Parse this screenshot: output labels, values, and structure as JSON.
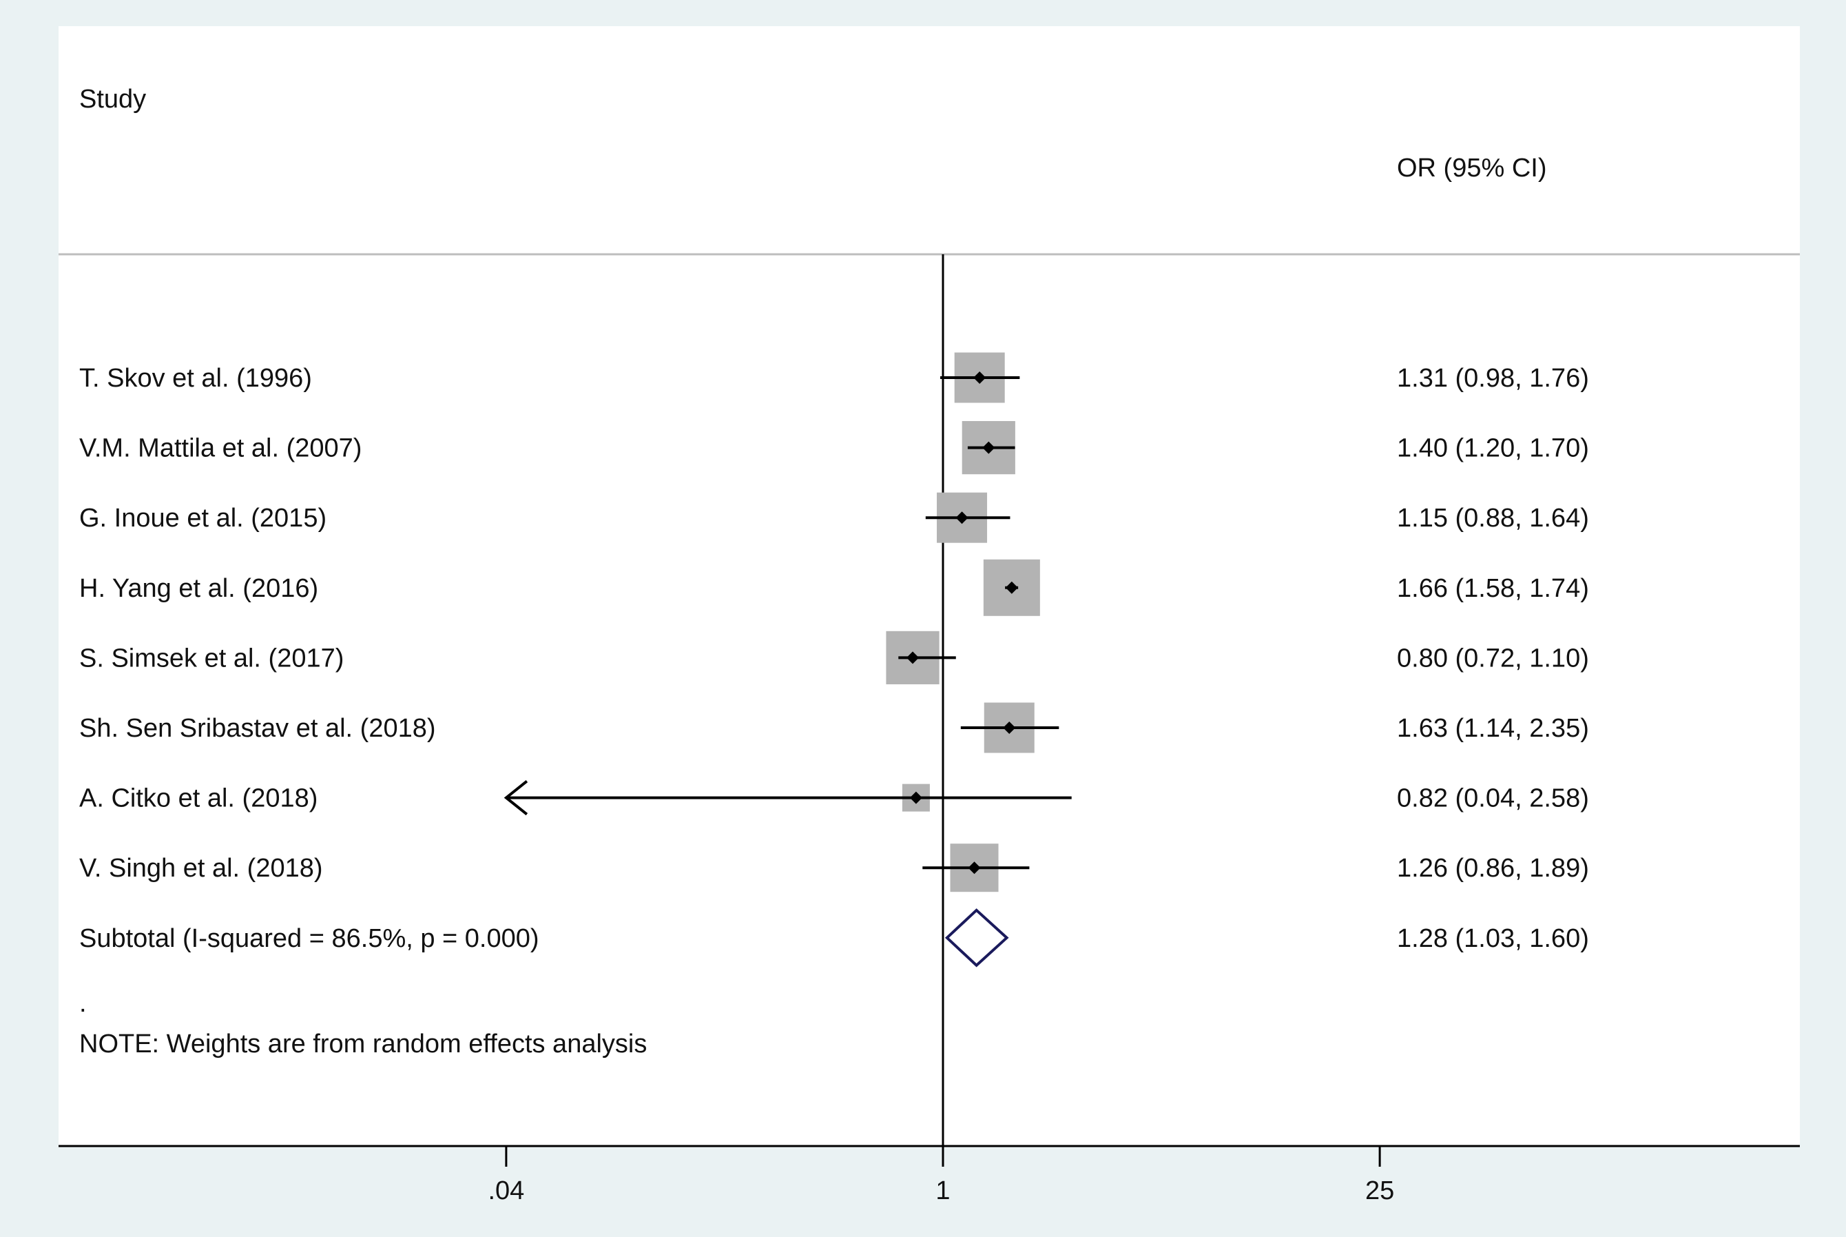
{
  "chart_data": {
    "type": "forest",
    "header_study": "Study",
    "header_ci": "OR (95% CI)",
    "x_scale": "log",
    "x_ticks": [
      {
        "value": 0.04,
        "label": ".04"
      },
      {
        "value": 1,
        "label": "1"
      },
      {
        "value": 25,
        "label": "25"
      }
    ],
    "null_line": 1,
    "studies": [
      {
        "name": "T. Skov et al. (1996)",
        "or": 1.31,
        "lower": 0.98,
        "upper": 1.76,
        "weight_rank": 0.85,
        "ci_text": "1.31 (0.98, 1.76)"
      },
      {
        "name": "V.M. Mattila et al. (2007)",
        "or": 1.4,
        "lower": 1.2,
        "upper": 1.7,
        "weight_rank": 0.92,
        "ci_text": "1.40 (1.20, 1.70)"
      },
      {
        "name": "G. Inoue  et al. (2015)",
        "or": 1.15,
        "lower": 0.88,
        "upper": 1.64,
        "weight_rank": 0.85,
        "ci_text": "1.15 (0.88, 1.64)"
      },
      {
        "name": "H. Yang et al. (2016)",
        "or": 1.66,
        "lower": 1.58,
        "upper": 1.74,
        "weight_rank": 1.0,
        "ci_text": "1.66 (1.58, 1.74)"
      },
      {
        "name": "S. Simsek et al. (2017)",
        "or": 0.8,
        "lower": 0.72,
        "upper": 1.1,
        "weight_rank": 0.92,
        "ci_text": "0.80 (0.72, 1.10)"
      },
      {
        "name": "Sh. Sen Sribastav et al. (2018)",
        "or": 1.63,
        "lower": 1.14,
        "upper": 2.35,
        "weight_rank": 0.85,
        "ci_text": "1.63 (1.14, 2.35)"
      },
      {
        "name": "A. Citko et al. (2018)",
        "or": 0.82,
        "lower": 0.04,
        "upper": 2.58,
        "weight_rank": 0.3,
        "ci_text": "0.82 (0.04, 2.58)",
        "lower_arrow": true
      },
      {
        "name": "V. Singh et al. (2018)",
        "or": 1.26,
        "lower": 0.86,
        "upper": 1.89,
        "weight_rank": 0.8,
        "ci_text": "1.26 (0.86, 1.89)"
      }
    ],
    "subtotal": {
      "label": "Subtotal  (I-squared = 86.5%, p = 0.000)",
      "or": 1.28,
      "lower": 1.03,
      "upper": 1.6,
      "ci_text": "1.28 (1.03, 1.60)"
    },
    "dot": ".",
    "note": "NOTE: Weights are from random effects analysis",
    "colors": {
      "background": "#eaf2f3",
      "panel": "#ffffff",
      "box": "#b3b3b3",
      "diamond": "#1a1a5c",
      "line": "#000000",
      "separator": "#bdbdbd"
    }
  }
}
